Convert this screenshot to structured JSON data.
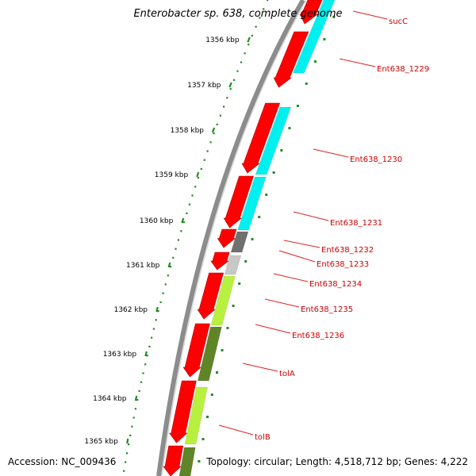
{
  "title": "Enterobacter sp. 638, complete genome",
  "accession": "Accession: NC_009436",
  "summary": "Topology: circular; Length: 4,518,712 bp; Genes: 4,222",
  "colors": {
    "backbone": "#8c8c8c",
    "forward_cds": "#ff0000",
    "ruler": "#228b22",
    "label": "#cc0000",
    "leader": "#dd2222",
    "category_cyan": "#00f0f0",
    "category_lime": "#b8f040",
    "category_olive": "#5f8528",
    "category_gray": "#707070",
    "category_lightgray": "#c8c8c8"
  },
  "ruler": {
    "unit": "kbp",
    "ticks": [
      {
        "label": "1356 kbp"
      },
      {
        "label": "1357 kbp"
      },
      {
        "label": "1358 kbp"
      },
      {
        "label": "1359 kbp"
      },
      {
        "label": "1360 kbp"
      },
      {
        "label": "1361 kbp"
      },
      {
        "label": "1362 kbp"
      },
      {
        "label": "1363 kbp"
      },
      {
        "label": "1364 kbp"
      },
      {
        "label": "1365 kbp"
      }
    ]
  },
  "genes": [
    {
      "label": "sucC"
    },
    {
      "label": "Ent638_1229"
    },
    {
      "label": "Ent638_1230"
    },
    {
      "label": "Ent638_1231"
    },
    {
      "label": "Ent638_1232"
    },
    {
      "label": "Ent638_1233"
    },
    {
      "label": "Ent638_1234"
    },
    {
      "label": "Ent638_1235"
    },
    {
      "label": "Ent638_1236"
    },
    {
      "label": "tolA"
    },
    {
      "label": "tolB"
    }
  ]
}
